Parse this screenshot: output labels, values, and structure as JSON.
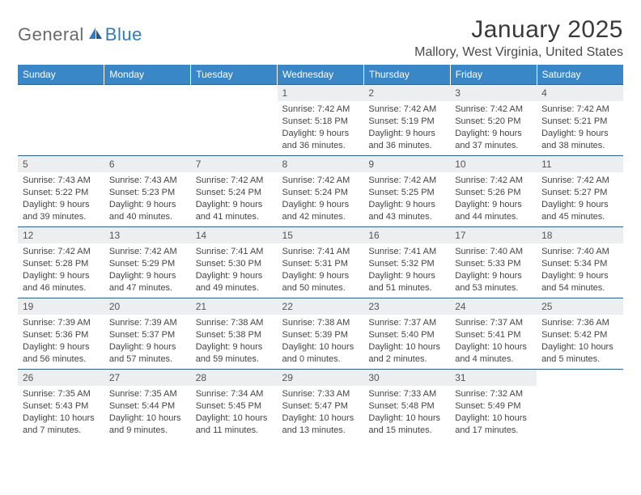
{
  "logo": {
    "textGeneral": "General",
    "textBlue": "Blue"
  },
  "title": "January 2025",
  "location": "Mallory, West Virginia, United States",
  "colors": {
    "headerBg": "#3a87c8",
    "headerText": "#ffffff",
    "rowBorder": "#2b5f8c",
    "dayNumBg": "#eceef0",
    "logoBlue": "#2f7bbf",
    "logoGray": "#6a6a6a"
  },
  "dayHeaders": [
    "Sunday",
    "Monday",
    "Tuesday",
    "Wednesday",
    "Thursday",
    "Friday",
    "Saturday"
  ],
  "weeks": [
    [
      {
        "n": "",
        "sunrise": "",
        "sunset": "",
        "daylight": ""
      },
      {
        "n": "",
        "sunrise": "",
        "sunset": "",
        "daylight": ""
      },
      {
        "n": "",
        "sunrise": "",
        "sunset": "",
        "daylight": ""
      },
      {
        "n": "1",
        "sunrise": "Sunrise: 7:42 AM",
        "sunset": "Sunset: 5:18 PM",
        "daylight": "Daylight: 9 hours and 36 minutes."
      },
      {
        "n": "2",
        "sunrise": "Sunrise: 7:42 AM",
        "sunset": "Sunset: 5:19 PM",
        "daylight": "Daylight: 9 hours and 36 minutes."
      },
      {
        "n": "3",
        "sunrise": "Sunrise: 7:42 AM",
        "sunset": "Sunset: 5:20 PM",
        "daylight": "Daylight: 9 hours and 37 minutes."
      },
      {
        "n": "4",
        "sunrise": "Sunrise: 7:42 AM",
        "sunset": "Sunset: 5:21 PM",
        "daylight": "Daylight: 9 hours and 38 minutes."
      }
    ],
    [
      {
        "n": "5",
        "sunrise": "Sunrise: 7:43 AM",
        "sunset": "Sunset: 5:22 PM",
        "daylight": "Daylight: 9 hours and 39 minutes."
      },
      {
        "n": "6",
        "sunrise": "Sunrise: 7:43 AM",
        "sunset": "Sunset: 5:23 PM",
        "daylight": "Daylight: 9 hours and 40 minutes."
      },
      {
        "n": "7",
        "sunrise": "Sunrise: 7:42 AM",
        "sunset": "Sunset: 5:24 PM",
        "daylight": "Daylight: 9 hours and 41 minutes."
      },
      {
        "n": "8",
        "sunrise": "Sunrise: 7:42 AM",
        "sunset": "Sunset: 5:24 PM",
        "daylight": "Daylight: 9 hours and 42 minutes."
      },
      {
        "n": "9",
        "sunrise": "Sunrise: 7:42 AM",
        "sunset": "Sunset: 5:25 PM",
        "daylight": "Daylight: 9 hours and 43 minutes."
      },
      {
        "n": "10",
        "sunrise": "Sunrise: 7:42 AM",
        "sunset": "Sunset: 5:26 PM",
        "daylight": "Daylight: 9 hours and 44 minutes."
      },
      {
        "n": "11",
        "sunrise": "Sunrise: 7:42 AM",
        "sunset": "Sunset: 5:27 PM",
        "daylight": "Daylight: 9 hours and 45 minutes."
      }
    ],
    [
      {
        "n": "12",
        "sunrise": "Sunrise: 7:42 AM",
        "sunset": "Sunset: 5:28 PM",
        "daylight": "Daylight: 9 hours and 46 minutes."
      },
      {
        "n": "13",
        "sunrise": "Sunrise: 7:42 AM",
        "sunset": "Sunset: 5:29 PM",
        "daylight": "Daylight: 9 hours and 47 minutes."
      },
      {
        "n": "14",
        "sunrise": "Sunrise: 7:41 AM",
        "sunset": "Sunset: 5:30 PM",
        "daylight": "Daylight: 9 hours and 49 minutes."
      },
      {
        "n": "15",
        "sunrise": "Sunrise: 7:41 AM",
        "sunset": "Sunset: 5:31 PM",
        "daylight": "Daylight: 9 hours and 50 minutes."
      },
      {
        "n": "16",
        "sunrise": "Sunrise: 7:41 AM",
        "sunset": "Sunset: 5:32 PM",
        "daylight": "Daylight: 9 hours and 51 minutes."
      },
      {
        "n": "17",
        "sunrise": "Sunrise: 7:40 AM",
        "sunset": "Sunset: 5:33 PM",
        "daylight": "Daylight: 9 hours and 53 minutes."
      },
      {
        "n": "18",
        "sunrise": "Sunrise: 7:40 AM",
        "sunset": "Sunset: 5:34 PM",
        "daylight": "Daylight: 9 hours and 54 minutes."
      }
    ],
    [
      {
        "n": "19",
        "sunrise": "Sunrise: 7:39 AM",
        "sunset": "Sunset: 5:36 PM",
        "daylight": "Daylight: 9 hours and 56 minutes."
      },
      {
        "n": "20",
        "sunrise": "Sunrise: 7:39 AM",
        "sunset": "Sunset: 5:37 PM",
        "daylight": "Daylight: 9 hours and 57 minutes."
      },
      {
        "n": "21",
        "sunrise": "Sunrise: 7:38 AM",
        "sunset": "Sunset: 5:38 PM",
        "daylight": "Daylight: 9 hours and 59 minutes."
      },
      {
        "n": "22",
        "sunrise": "Sunrise: 7:38 AM",
        "sunset": "Sunset: 5:39 PM",
        "daylight": "Daylight: 10 hours and 0 minutes."
      },
      {
        "n": "23",
        "sunrise": "Sunrise: 7:37 AM",
        "sunset": "Sunset: 5:40 PM",
        "daylight": "Daylight: 10 hours and 2 minutes."
      },
      {
        "n": "24",
        "sunrise": "Sunrise: 7:37 AM",
        "sunset": "Sunset: 5:41 PM",
        "daylight": "Daylight: 10 hours and 4 minutes."
      },
      {
        "n": "25",
        "sunrise": "Sunrise: 7:36 AM",
        "sunset": "Sunset: 5:42 PM",
        "daylight": "Daylight: 10 hours and 5 minutes."
      }
    ],
    [
      {
        "n": "26",
        "sunrise": "Sunrise: 7:35 AM",
        "sunset": "Sunset: 5:43 PM",
        "daylight": "Daylight: 10 hours and 7 minutes."
      },
      {
        "n": "27",
        "sunrise": "Sunrise: 7:35 AM",
        "sunset": "Sunset: 5:44 PM",
        "daylight": "Daylight: 10 hours and 9 minutes."
      },
      {
        "n": "28",
        "sunrise": "Sunrise: 7:34 AM",
        "sunset": "Sunset: 5:45 PM",
        "daylight": "Daylight: 10 hours and 11 minutes."
      },
      {
        "n": "29",
        "sunrise": "Sunrise: 7:33 AM",
        "sunset": "Sunset: 5:47 PM",
        "daylight": "Daylight: 10 hours and 13 minutes."
      },
      {
        "n": "30",
        "sunrise": "Sunrise: 7:33 AM",
        "sunset": "Sunset: 5:48 PM",
        "daylight": "Daylight: 10 hours and 15 minutes."
      },
      {
        "n": "31",
        "sunrise": "Sunrise: 7:32 AM",
        "sunset": "Sunset: 5:49 PM",
        "daylight": "Daylight: 10 hours and 17 minutes."
      },
      {
        "n": "",
        "sunrise": "",
        "sunset": "",
        "daylight": ""
      }
    ]
  ]
}
